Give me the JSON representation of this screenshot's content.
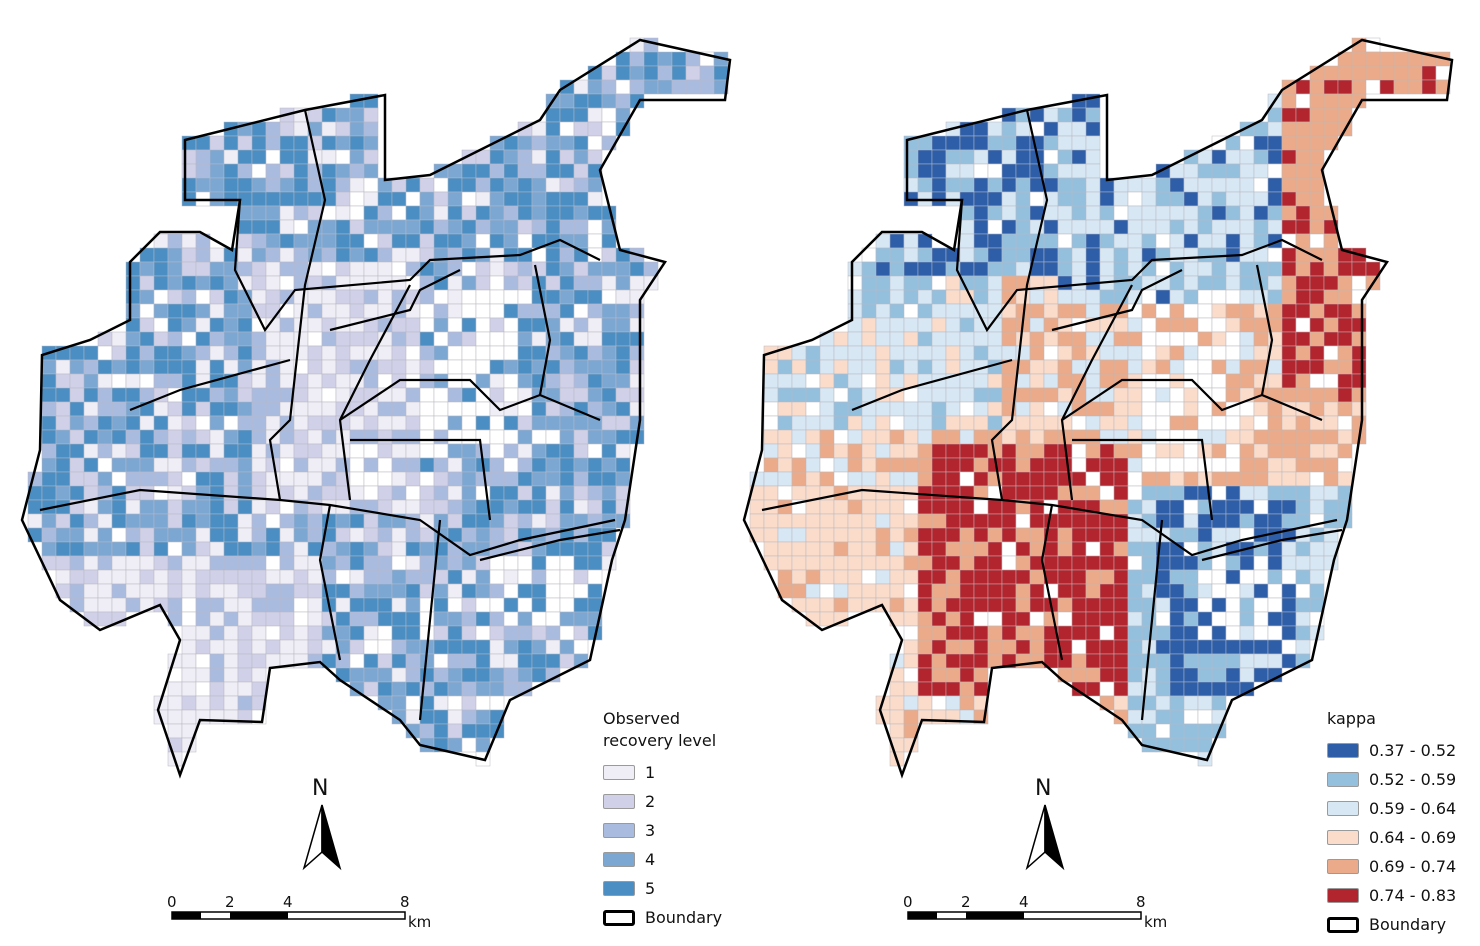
{
  "left_map": {
    "legend": {
      "title": "Observed recovery level",
      "classes": [
        {
          "label": "1",
          "color": "#efeef6"
        },
        {
          "label": "2",
          "color": "#d0d1e9"
        },
        {
          "label": "3",
          "color": "#aabbe0"
        },
        {
          "label": "4",
          "color": "#7ca7d2"
        },
        {
          "label": "5",
          "color": "#4a8ec3"
        }
      ],
      "boundary_label": "Boundary"
    },
    "north": "N",
    "scale": {
      "ticks": [
        "0",
        "2",
        "4",
        "8"
      ],
      "unit": "km"
    }
  },
  "right_map": {
    "legend": {
      "title": "kappa",
      "classes": [
        {
          "label": "0.37 - 0.52",
          "color": "#2e5ea8"
        },
        {
          "label": "0.52 - 0.59",
          "color": "#94c0dd"
        },
        {
          "label": "0.59 - 0.64",
          "color": "#d7e7f3"
        },
        {
          "label": "0.64 - 0.69",
          "color": "#fbdccb"
        },
        {
          "label": "0.69 - 0.74",
          "color": "#ebaa89"
        },
        {
          "label": "0.74 - 0.83",
          "color": "#b2252e"
        }
      ],
      "boundary_label": "Boundary"
    },
    "north": "N",
    "scale": {
      "ticks": [
        "0",
        "2",
        "4",
        "8"
      ],
      "unit": "km"
    }
  }
}
